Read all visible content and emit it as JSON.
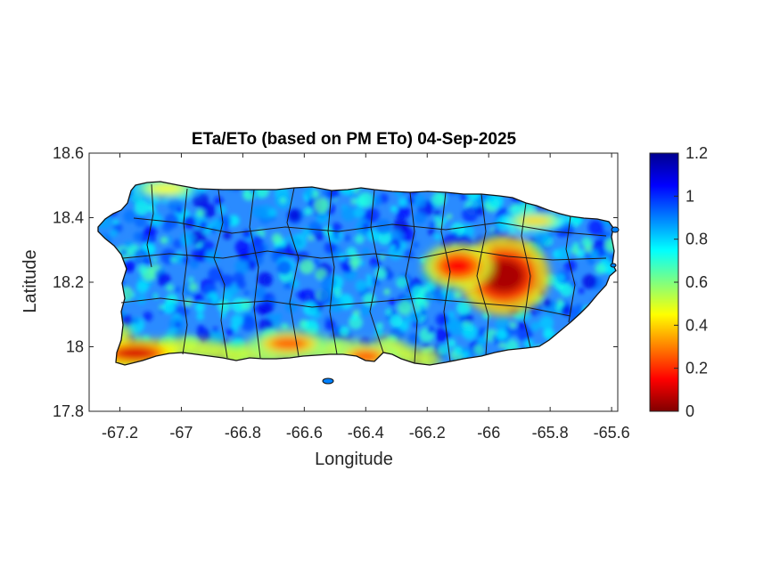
{
  "chart_data": {
    "type": "heatmap",
    "title": "ETa/ETo (based on PM ETo) 04-Sep-2025",
    "xlabel": "Longitude",
    "ylabel": "Latitude",
    "xlim": [
      -67.3,
      -65.58
    ],
    "ylim": [
      17.8,
      18.6
    ],
    "xticks": [
      -67.2,
      -67,
      -66.8,
      -66.6,
      -66.4,
      -66.2,
      -66,
      -65.8,
      -65.6
    ],
    "xtick_labels": [
      "-67.2",
      "-67",
      "-66.8",
      "-66.6",
      "-66.4",
      "-66.2",
      "-66",
      "-65.8",
      "-65.6"
    ],
    "yticks": [
      17.8,
      18,
      18.2,
      18.4,
      18.6
    ],
    "ytick_labels": [
      "17.8",
      "18",
      "18.2",
      "18.4",
      "18.6"
    ],
    "colorbar": {
      "colormap": "jet",
      "range": [
        0,
        1.2
      ],
      "ticks": [
        0,
        0.2,
        0.4,
        0.6,
        0.8,
        1,
        1.2
      ],
      "tick_labels": [
        "0",
        "0.2",
        "0.4",
        "0.6",
        "0.8",
        "1",
        "1.2"
      ]
    },
    "dominant_value_range": [
      0.7,
      1.0
    ],
    "low_value_regions": [
      {
        "name": "east-central interior",
        "lon": -65.95,
        "lat": 18.22,
        "value": 0.05
      },
      {
        "name": "east-central west lobe",
        "lon": -66.1,
        "lat": 18.25,
        "value": 0.15
      },
      {
        "name": "southwest coast",
        "lon": -67.15,
        "lat": 17.98,
        "value": 0.1
      },
      {
        "name": "south coast",
        "lon": -66.65,
        "lat": 18.01,
        "value": 0.25
      },
      {
        "name": "south-central coast",
        "lon": -66.4,
        "lat": 17.97,
        "value": 0.25
      },
      {
        "name": "northwest coast",
        "lon": -67.05,
        "lat": 18.49,
        "value": 0.45
      },
      {
        "name": "northeast coast",
        "lon": -65.85,
        "lat": 18.39,
        "value": 0.4
      }
    ],
    "grid": false
  }
}
